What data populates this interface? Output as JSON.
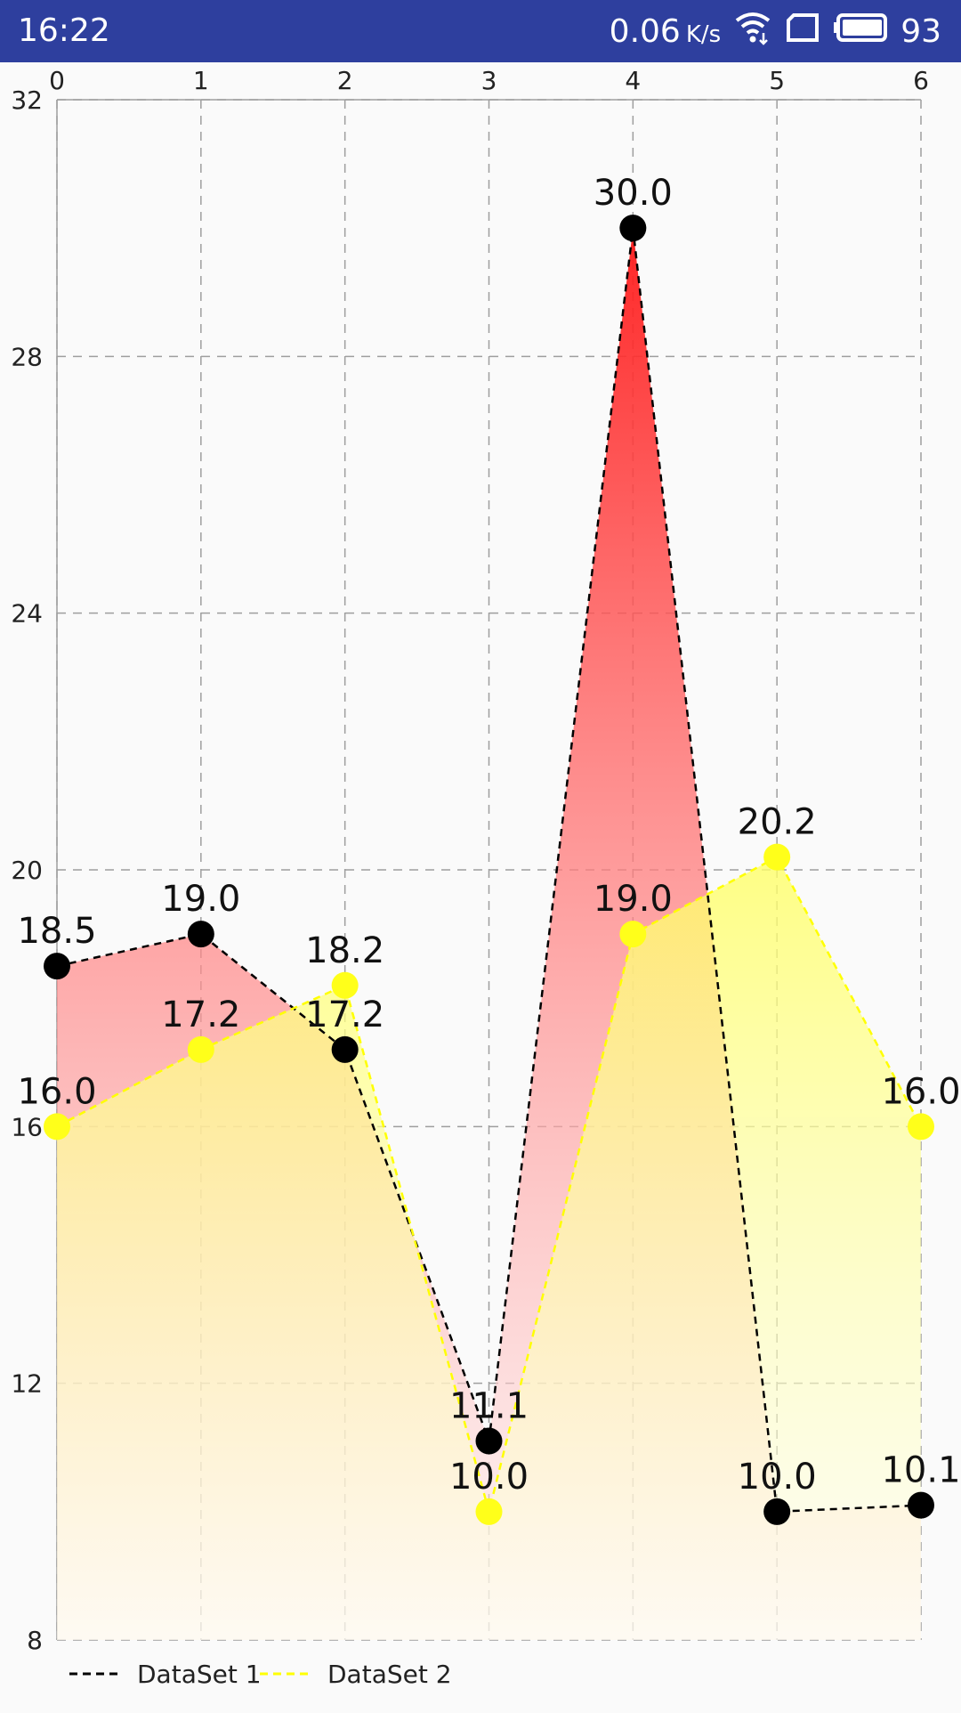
{
  "status_bar": {
    "time": "16:22",
    "network_speed": "0.06",
    "network_speed_unit": "K/s",
    "battery_level": "93",
    "icons": [
      "wifi-icon",
      "sim-card-icon",
      "battery-icon"
    ]
  },
  "chart_data": {
    "type": "area",
    "x": [
      0,
      1,
      2,
      3,
      4,
      5,
      6
    ],
    "x_tick_labels": [
      "0",
      "1",
      "2",
      "3",
      "4",
      "5",
      "6"
    ],
    "y_tick_labels": [
      "8",
      "12",
      "16",
      "20",
      "24",
      "28",
      "32"
    ],
    "xlim": [
      0,
      6
    ],
    "ylim": [
      8,
      32
    ],
    "grid": true,
    "grid_style": "dashed",
    "x_axis_position": "top",
    "legend_position": "bottom-left",
    "series": [
      {
        "name": "DataSet 1",
        "values": [
          18.5,
          19.0,
          17.2,
          11.1,
          30.0,
          10.0,
          10.1
        ],
        "labels": [
          "18.5",
          "19.0",
          "17.2",
          "11.1",
          "30.0",
          "10.0",
          "10.1"
        ],
        "line_color": "#000000",
        "point_color": "#000000",
        "fill_top_color": "#ff1a1a",
        "fill_bottom_color": "#fff0f0"
      },
      {
        "name": "DataSet 2",
        "values": [
          16.0,
          17.2,
          18.2,
          10.0,
          19.0,
          20.2,
          16.0
        ],
        "labels": [
          "16.0",
          "17.2",
          "18.2",
          "10.0",
          "19.0",
          "20.2",
          "16.0"
        ],
        "line_color": "#ffff00",
        "point_color": "#ffff1a",
        "fill_top_color": "#ffff66",
        "fill_bottom_color": "#fffff0"
      }
    ]
  }
}
